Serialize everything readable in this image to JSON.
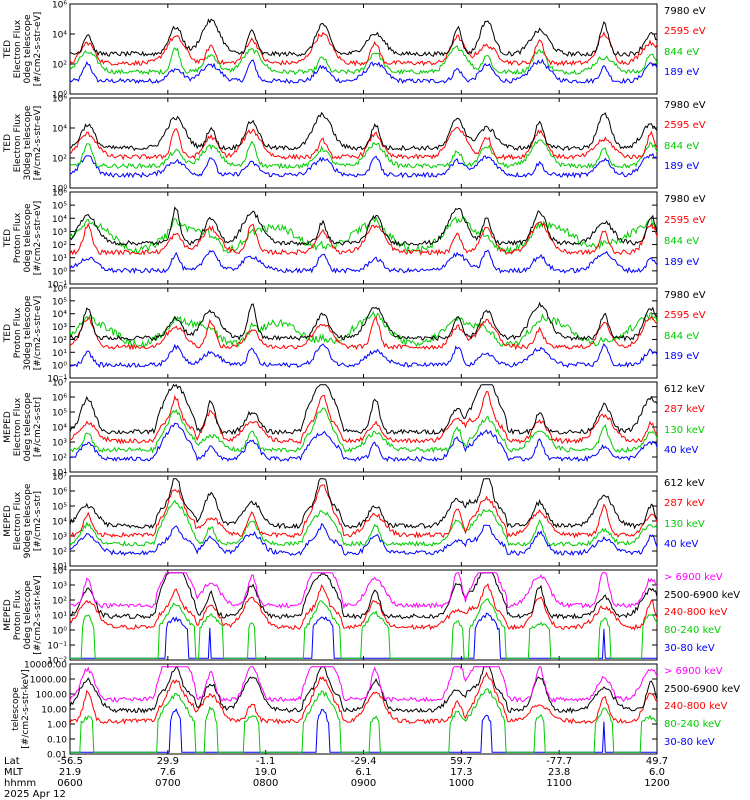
{
  "chart_data": [
    {
      "type": "line",
      "ylabel": [
        "TED",
        "Electron Flux",
        "0deg telescope",
        "[#/cm2-s-str-eV]"
      ],
      "yscale": "log",
      "ylim": [
        1,
        1000000
      ],
      "yticks": [
        {
          "label": "10⁰",
          "v": 1
        },
        {
          "label": "10²",
          "v": 100
        },
        {
          "label": "10⁴",
          "v": 10000
        },
        {
          "label": "10⁶",
          "v": 1000000
        }
      ],
      "series": [
        {
          "name": "7980 eV",
          "color": "#000000"
        },
        {
          "name": "2595 eV",
          "color": "#ff0000"
        },
        {
          "name": "844 eV",
          "color": "#00cc00"
        },
        {
          "name": "189 eV",
          "color": "#0000ff"
        }
      ]
    },
    {
      "type": "line",
      "ylabel": [
        "TED",
        "Electron Flux",
        "30deg telescope",
        "[#/cm2-s-str-eV]"
      ],
      "yscale": "log",
      "ylim": [
        1,
        1000000
      ],
      "yticks": [
        {
          "label": "10⁰",
          "v": 1
        },
        {
          "label": "10²",
          "v": 100
        },
        {
          "label": "10⁴",
          "v": 10000
        },
        {
          "label": "10⁶",
          "v": 1000000
        }
      ],
      "series": [
        {
          "name": "7980 eV",
          "color": "#000000"
        },
        {
          "name": "2595 eV",
          "color": "#ff0000"
        },
        {
          "name": "844 eV",
          "color": "#00cc00"
        },
        {
          "name": "189 eV",
          "color": "#0000ff"
        }
      ]
    },
    {
      "type": "line",
      "ylabel": [
        "TED",
        "Proton Flux",
        "0deg telescope",
        "[#/cm2-s-str-eV]"
      ],
      "yscale": "log",
      "ylim": [
        0.1,
        1000000
      ],
      "yticks": [
        {
          "label": "10⁻¹",
          "v": 0.1
        },
        {
          "label": "10⁰",
          "v": 1
        },
        {
          "label": "10¹",
          "v": 10
        },
        {
          "label": "10²",
          "v": 100
        },
        {
          "label": "10³",
          "v": 1000
        },
        {
          "label": "10⁴",
          "v": 10000
        },
        {
          "label": "10⁵",
          "v": 100000
        },
        {
          "label": "10⁶",
          "v": 1000000
        }
      ],
      "series": [
        {
          "name": "7980 eV",
          "color": "#000000"
        },
        {
          "name": "2595 eV",
          "color": "#ff0000"
        },
        {
          "name": "844 eV",
          "color": "#00cc00"
        },
        {
          "name": "189 eV",
          "color": "#0000ff"
        }
      ]
    },
    {
      "type": "line",
      "ylabel": [
        "TED",
        "Proton Flux",
        "30deg telescope",
        "[#/cm2-s-str-eV]"
      ],
      "yscale": "log",
      "ylim": [
        0.1,
        1000000
      ],
      "yticks": [
        {
          "label": "10⁻¹",
          "v": 0.1
        },
        {
          "label": "10⁰",
          "v": 1
        },
        {
          "label": "10¹",
          "v": 10
        },
        {
          "label": "10²",
          "v": 100
        },
        {
          "label": "10³",
          "v": 1000
        },
        {
          "label": "10⁴",
          "v": 10000
        },
        {
          "label": "10⁵",
          "v": 100000
        },
        {
          "label": "10⁶",
          "v": 1000000
        }
      ],
      "series": [
        {
          "name": "7980 eV",
          "color": "#000000"
        },
        {
          "name": "2595 eV",
          "color": "#ff0000"
        },
        {
          "name": "844 eV",
          "color": "#00cc00"
        },
        {
          "name": "189 eV",
          "color": "#0000ff"
        }
      ]
    },
    {
      "type": "line",
      "ylabel": [
        "MEPED",
        "Electron Flux",
        "0deg telescope",
        "[#/cm2-s-str]"
      ],
      "yscale": "log",
      "ylim": [
        10,
        10000000
      ],
      "yticks": [
        {
          "label": "10¹",
          "v": 10
        },
        {
          "label": "10²",
          "v": 100
        },
        {
          "label": "10³",
          "v": 1000
        },
        {
          "label": "10⁴",
          "v": 10000
        },
        {
          "label": "10⁵",
          "v": 100000
        },
        {
          "label": "10⁶",
          "v": 1000000
        },
        {
          "label": "10⁷",
          "v": 10000000
        }
      ],
      "series": [
        {
          "name": "612 keV",
          "color": "#000000"
        },
        {
          "name": "287 keV",
          "color": "#ff0000"
        },
        {
          "name": "130 keV",
          "color": "#00cc00"
        },
        {
          "name": "40 keV",
          "color": "#0000ff"
        }
      ]
    },
    {
      "type": "line",
      "ylabel": [
        "MEPED",
        "Electron Flux",
        "90deg telescope",
        "[#/cm2-s-str]"
      ],
      "yscale": "log",
      "ylim": [
        10,
        10000000
      ],
      "yticks": [
        {
          "label": "10¹",
          "v": 10
        },
        {
          "label": "10²",
          "v": 100
        },
        {
          "label": "10³",
          "v": 1000
        },
        {
          "label": "10⁴",
          "v": 10000
        },
        {
          "label": "10⁵",
          "v": 100000
        },
        {
          "label": "10⁶",
          "v": 1000000
        },
        {
          "label": "10⁷",
          "v": 10000000
        }
      ],
      "series": [
        {
          "name": "612 keV",
          "color": "#000000"
        },
        {
          "name": "287 keV",
          "color": "#ff0000"
        },
        {
          "name": "130 keV",
          "color": "#00cc00"
        },
        {
          "name": "40 keV",
          "color": "#0000ff"
        }
      ]
    },
    {
      "type": "line",
      "ylabel": [
        "MEPED",
        "Proton Flux",
        "0deg telescope",
        "[#/cm2-s-str-keV]"
      ],
      "yscale": "log",
      "ylim": [
        0.01,
        10000
      ],
      "yticks": [
        {
          "label": "10⁻²",
          "v": 0.01
        },
        {
          "label": "10⁻¹",
          "v": 0.1
        },
        {
          "label": "10⁰",
          "v": 1
        },
        {
          "label": "10¹",
          "v": 10
        },
        {
          "label": "10²",
          "v": 100
        },
        {
          "label": "10³",
          "v": 1000
        },
        {
          "label": "10⁴",
          "v": 10000
        }
      ],
      "series": [
        {
          "name": "> 6900 keV",
          "color": "#ff00ff"
        },
        {
          "name": "2500-6900 keV",
          "color": "#000000"
        },
        {
          "name": "240-800 keV",
          "color": "#ff0000"
        },
        {
          "name": "80-240 keV",
          "color": "#00cc00"
        },
        {
          "name": "30-80 keV",
          "color": "#0000ff"
        }
      ]
    },
    {
      "type": "line",
      "ylabel": [
        "telescope",
        "[#/cm2-s-str-keV]"
      ],
      "yscale": "log",
      "ylim": [
        0.01,
        10000
      ],
      "yticks": [
        {
          "label": "0.01",
          "v": 0.01
        },
        {
          "label": "0.10",
          "v": 0.1
        },
        {
          "label": "1.00",
          "v": 1
        },
        {
          "label": "10.00",
          "v": 10
        },
        {
          "label": "100.00",
          "v": 100
        },
        {
          "label": "1000.00",
          "v": 1000
        },
        {
          "label": "10000.00",
          "v": 10000
        }
      ],
      "series": [
        {
          "name": "> 6900 keV",
          "color": "#ff00ff"
        },
        {
          "name": "2500-6900 keV",
          "color": "#000000"
        },
        {
          "name": "240-800 keV",
          "color": "#ff0000"
        },
        {
          "name": "80-240 keV",
          "color": "#00cc00"
        },
        {
          "name": "30-80 keV",
          "color": "#0000ff"
        }
      ]
    }
  ],
  "xaxis": {
    "labels": {
      "lat": "Lat",
      "mlt": "MLT",
      "hhmm": "hhmm"
    },
    "ticks": [
      {
        "lat": "-56.5",
        "mlt": "21.9",
        "hhmm": "0600"
      },
      {
        "lat": "29.9",
        "mlt": "7.6",
        "hhmm": "0700"
      },
      {
        "lat": "-1.1",
        "mlt": "19.0",
        "hhmm": "0800"
      },
      {
        "lat": "-29.4",
        "mlt": "6.1",
        "hhmm": "0900"
      },
      {
        "lat": "59.7",
        "mlt": "17.3",
        "hhmm": "1000"
      },
      {
        "lat": "-77.7",
        "mlt": "23.8",
        "hhmm": "1100"
      },
      {
        "lat": "49.7",
        "mlt": "6.0",
        "hhmm": "1200"
      }
    ],
    "date": "2025 Apr 12"
  }
}
